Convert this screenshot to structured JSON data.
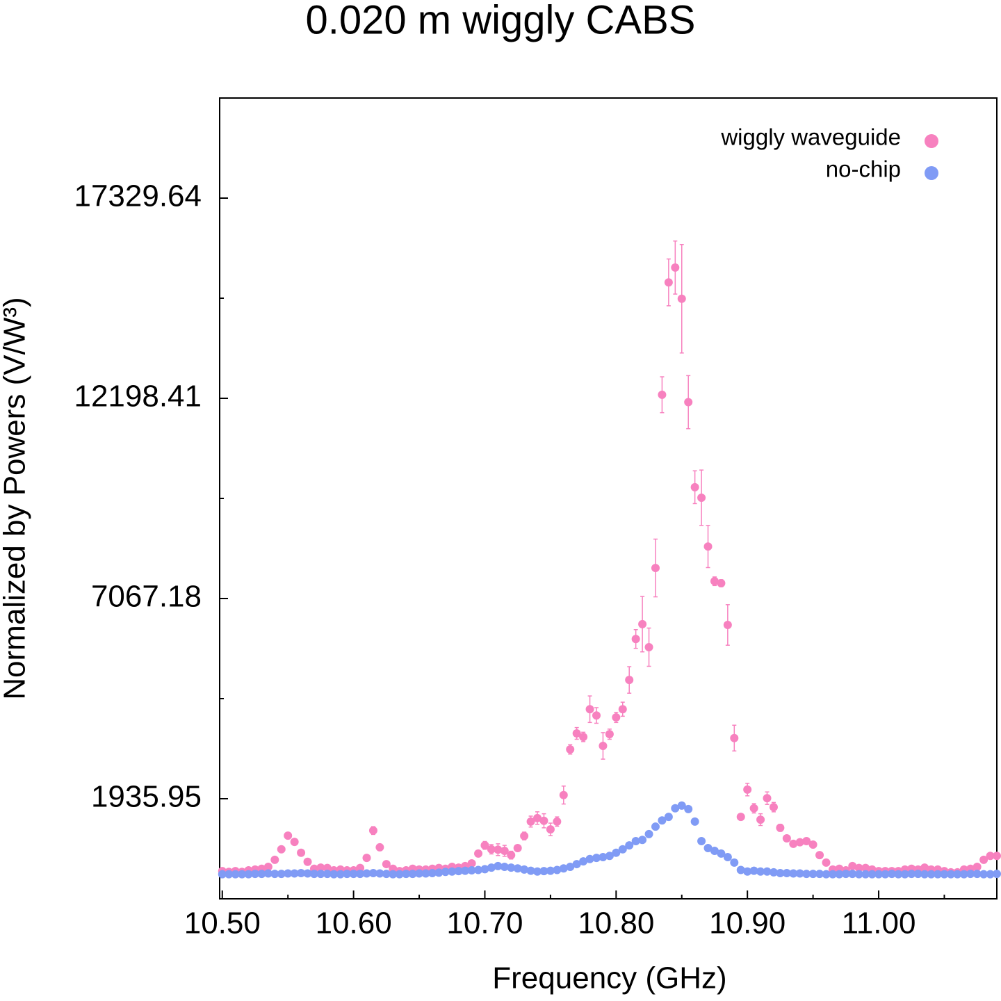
{
  "chart_data": {
    "type": "scatter",
    "title": "0.020 m wiggly CABS",
    "xlabel": "Frequency (GHz)",
    "ylabel": "Normalized by Powers (V/W³)",
    "xlim": [
      10.498,
      11.09
    ],
    "ylim": [
      -629.665,
      19895.255
    ],
    "xticks": [
      {
        "value": 10.5,
        "label": "10.50"
      },
      {
        "value": 10.6,
        "label": "10.60"
      },
      {
        "value": 10.7,
        "label": "10.70"
      },
      {
        "value": 10.8,
        "label": "10.80"
      },
      {
        "value": 10.9,
        "label": "10.90"
      },
      {
        "value": 11.0,
        "label": "11.00"
      }
    ],
    "xminorticks": [
      10.55,
      10.65,
      10.75,
      10.85,
      10.95,
      11.05
    ],
    "yticks": [
      1935.95,
      7067.18,
      12198.41,
      17329.64
    ],
    "yminorticks": [
      4501.565,
      9632.795,
      14764.025
    ],
    "legend": "upper right",
    "x": [
      10.5,
      10.505,
      10.51,
      10.515,
      10.52,
      10.525,
      10.53,
      10.535,
      10.54,
      10.545,
      10.55,
      10.555,
      10.56,
      10.565,
      10.57,
      10.575,
      10.58,
      10.585,
      10.59,
      10.595,
      10.6,
      10.605,
      10.61,
      10.615,
      10.62,
      10.625,
      10.63,
      10.635,
      10.64,
      10.645,
      10.65,
      10.655,
      10.66,
      10.665,
      10.67,
      10.675,
      10.68,
      10.685,
      10.69,
      10.695,
      10.7,
      10.705,
      10.71,
      10.715,
      10.72,
      10.725,
      10.73,
      10.735,
      10.74,
      10.745,
      10.75,
      10.755,
      10.76,
      10.765,
      10.77,
      10.775,
      10.78,
      10.785,
      10.79,
      10.795,
      10.8,
      10.805,
      10.81,
      10.815,
      10.82,
      10.825,
      10.83,
      10.835,
      10.84,
      10.845,
      10.85,
      10.855,
      10.86,
      10.865,
      10.87,
      10.875,
      10.88,
      10.885,
      10.89,
      10.895,
      10.9,
      10.905,
      10.91,
      10.915,
      10.92,
      10.925,
      10.93,
      10.935,
      10.94,
      10.945,
      10.95,
      10.955,
      10.96,
      10.965,
      10.97,
      10.975,
      10.98,
      10.985,
      10.99,
      10.995,
      11.0,
      11.005,
      11.01,
      11.015,
      11.02,
      11.025,
      11.03,
      11.035,
      11.04,
      11.045,
      11.05,
      11.055,
      11.06,
      11.065,
      11.07,
      11.075,
      11.08,
      11.085,
      11.09
    ],
    "series": [
      {
        "name": "wiggly waveguide",
        "color": "#f781bf",
        "values": [
          80,
          60,
          80,
          60,
          100,
          120,
          140,
          190,
          370,
          640,
          990,
          830,
          550,
          320,
          140,
          170,
          160,
          100,
          120,
          100,
          100,
          160,
          420,
          1120,
          690,
          260,
          140,
          80,
          100,
          140,
          120,
          120,
          140,
          160,
          140,
          190,
          170,
          210,
          280,
          530,
          740,
          640,
          630,
          600,
          490,
          670,
          980,
          1350,
          1440,
          1370,
          1150,
          1350,
          2030,
          3200,
          3610,
          3520,
          4230,
          4070,
          3290,
          3590,
          4020,
          4230,
          4980,
          6030,
          6410,
          5820,
          7850,
          12290,
          15170,
          15550,
          14750,
          12100,
          9920,
          9650,
          8400,
          7510,
          7460,
          6390,
          3490,
          1470,
          2170,
          1690,
          1400,
          1950,
          1720,
          1190,
          920,
          780,
          820,
          850,
          760,
          490,
          300,
          120,
          140,
          100,
          210,
          160,
          160,
          120,
          80,
          80,
          80,
          80,
          120,
          140,
          120,
          170,
          120,
          120,
          80,
          50,
          50,
          120,
          140,
          190,
          370,
          470,
          470
        ],
        "errors": [
          30,
          30,
          30,
          30,
          30,
          30,
          30,
          30,
          30,
          60,
          80,
          60,
          40,
          40,
          40,
          30,
          30,
          30,
          30,
          30,
          30,
          30,
          50,
          100,
          80,
          50,
          30,
          30,
          30,
          30,
          30,
          30,
          30,
          30,
          30,
          30,
          30,
          30,
          40,
          60,
          100,
          120,
          150,
          140,
          100,
          80,
          100,
          140,
          160,
          180,
          160,
          120,
          230,
          120,
          150,
          120,
          340,
          200,
          340,
          130,
          130,
          180,
          340,
          240,
          710,
          490,
          740,
          460,
          600,
          680,
          1390,
          680,
          420,
          710,
          540,
          110,
          90,
          520,
          330,
          60,
          160,
          120,
          150,
          160,
          120,
          90,
          60,
          60,
          60,
          80,
          60,
          40,
          30,
          30,
          30,
          30,
          30,
          30,
          30,
          30,
          30,
          30,
          30,
          30,
          30,
          30,
          30,
          30,
          30,
          30,
          30,
          30,
          30,
          30,
          30,
          30,
          30,
          30,
          30
        ]
      },
      {
        "name": "no-chip",
        "color": "#809bf5",
        "values": [
          0,
          0,
          0,
          0,
          0,
          10,
          10,
          20,
          10,
          10,
          20,
          20,
          30,
          20,
          10,
          10,
          10,
          0,
          0,
          10,
          10,
          10,
          20,
          30,
          20,
          10,
          0,
          0,
          10,
          10,
          20,
          20,
          30,
          40,
          60,
          70,
          80,
          90,
          100,
          110,
          130,
          170,
          210,
          190,
          170,
          150,
          120,
          90,
          70,
          80,
          90,
          110,
          150,
          190,
          260,
          330,
          390,
          420,
          440,
          470,
          550,
          640,
          740,
          850,
          880,
          1030,
          1220,
          1380,
          1470,
          1690,
          1760,
          1670,
          1350,
          850,
          670,
          600,
          530,
          440,
          300,
          110,
          70,
          90,
          70,
          70,
          50,
          30,
          30,
          20,
          20,
          10,
          10,
          10,
          0,
          0,
          0,
          10,
          10,
          0,
          0,
          0,
          0,
          0,
          10,
          0,
          0,
          10,
          10,
          0,
          0,
          0,
          0,
          0,
          0,
          0,
          10,
          10,
          0,
          0,
          10
        ]
      }
    ]
  }
}
